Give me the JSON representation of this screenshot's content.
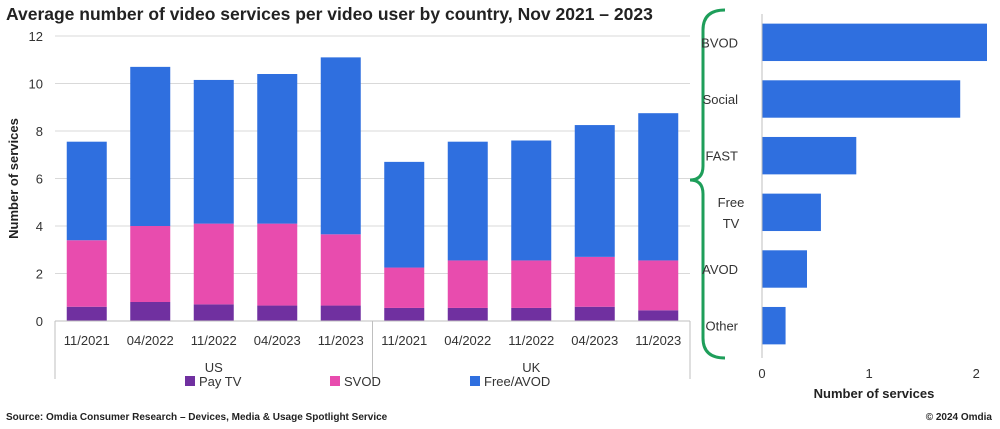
{
  "title": "Average number of video services per video user by country, Nov 2021 – 2023",
  "source": "Source: Omdia Consumer Research – Devices, Media & Usage Spotlight Service",
  "copyright": "© 2024 Omdia",
  "colors": {
    "pay_tv": "#7030a0",
    "svod": "#e84cae",
    "free_avod": "#2f6fdf",
    "bracket": "#1e9e5a"
  },
  "chart_data": [
    {
      "type": "bar",
      "stacked": true,
      "groups": [
        "US",
        "UK"
      ],
      "categories": [
        "11/2021",
        "04/2022",
        "11/2022",
        "04/2023",
        "11/2023",
        "11/2021",
        "04/2022",
        "11/2022",
        "04/2023",
        "11/2023"
      ],
      "category_groups": [
        "US",
        "US",
        "US",
        "US",
        "US",
        "UK",
        "UK",
        "UK",
        "UK",
        "UK"
      ],
      "series": [
        {
          "name": "Pay TV",
          "color": "#7030a0",
          "values": [
            0.6,
            0.8,
            0.7,
            0.65,
            0.65,
            0.55,
            0.55,
            0.55,
            0.6,
            0.45
          ]
        },
        {
          "name": "SVOD",
          "color": "#e84cae",
          "values": [
            2.8,
            3.2,
            3.4,
            3.45,
            3.0,
            1.7,
            2.0,
            2.0,
            2.1,
            2.1
          ]
        },
        {
          "name": "Free/AVOD",
          "color": "#2f6fdf",
          "values": [
            4.15,
            6.7,
            6.05,
            6.3,
            7.45,
            4.45,
            5.0,
            5.05,
            5.55,
            6.2
          ]
        }
      ],
      "ylabel": "Number of services",
      "ylim": [
        0,
        12
      ],
      "yticks": [
        0,
        2,
        4,
        6,
        8,
        10,
        12
      ],
      "grid": true,
      "legend": "bottom"
    },
    {
      "type": "bar",
      "orientation": "horizontal",
      "categories": [
        "BVOD",
        "Social",
        "FAST",
        "Free\nTV",
        "AVOD",
        "Other"
      ],
      "values": [
        2.1,
        1.85,
        0.88,
        0.55,
        0.42,
        0.22
      ],
      "color": "#2f6fdf",
      "xlabel": "Number of services",
      "xlim": [
        0,
        2.1
      ],
      "xticks": [
        0,
        1,
        2
      ],
      "grid": false
    }
  ]
}
